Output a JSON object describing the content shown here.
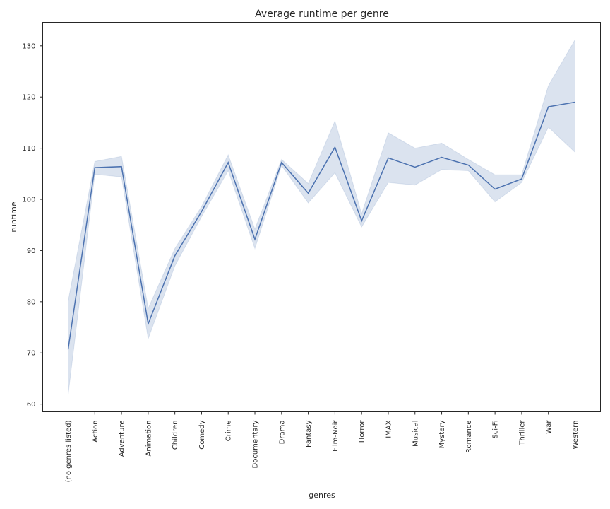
{
  "chart_data": {
    "type": "line",
    "title": "Average runtime per genre",
    "xlabel": "genres",
    "ylabel": "runtime",
    "ylim": [
      58.5,
      134.6
    ],
    "yticks": [
      60,
      70,
      80,
      90,
      100,
      110,
      120,
      130
    ],
    "grid": false,
    "categories": [
      "(no genres listed)",
      "Action",
      "Adventure",
      "Animation",
      "Children",
      "Comedy",
      "Crime",
      "Documentary",
      "Drama",
      "Fantasy",
      "Film-Noir",
      "Horror",
      "IMAX",
      "Musical",
      "Mystery",
      "Romance",
      "Sci-Fi",
      "Thriller",
      "War",
      "Western"
    ],
    "series": [
      {
        "values": [
          70.7,
          106.2,
          106.4,
          75.7,
          89.0,
          97.6,
          107.2,
          92.2,
          107.2,
          101.2,
          110.2,
          95.8,
          108.1,
          106.3,
          108.2,
          106.7,
          102.0,
          104.0,
          118.1,
          119.0
        ],
        "ci_low": [
          61.8,
          104.9,
          104.4,
          72.8,
          87.0,
          96.6,
          105.6,
          90.4,
          106.6,
          99.3,
          105.2,
          94.6,
          103.3,
          102.8,
          105.8,
          105.6,
          99.5,
          103.3,
          114.1,
          109.2
        ],
        "ci_high": [
          80.1,
          107.4,
          108.4,
          78.7,
          90.4,
          98.6,
          108.7,
          94.2,
          107.8,
          103.1,
          115.3,
          97.2,
          113.0,
          110.0,
          111.0,
          107.8,
          104.8,
          104.8,
          122.2,
          131.2
        ],
        "color": "#4c72b0"
      }
    ]
  }
}
